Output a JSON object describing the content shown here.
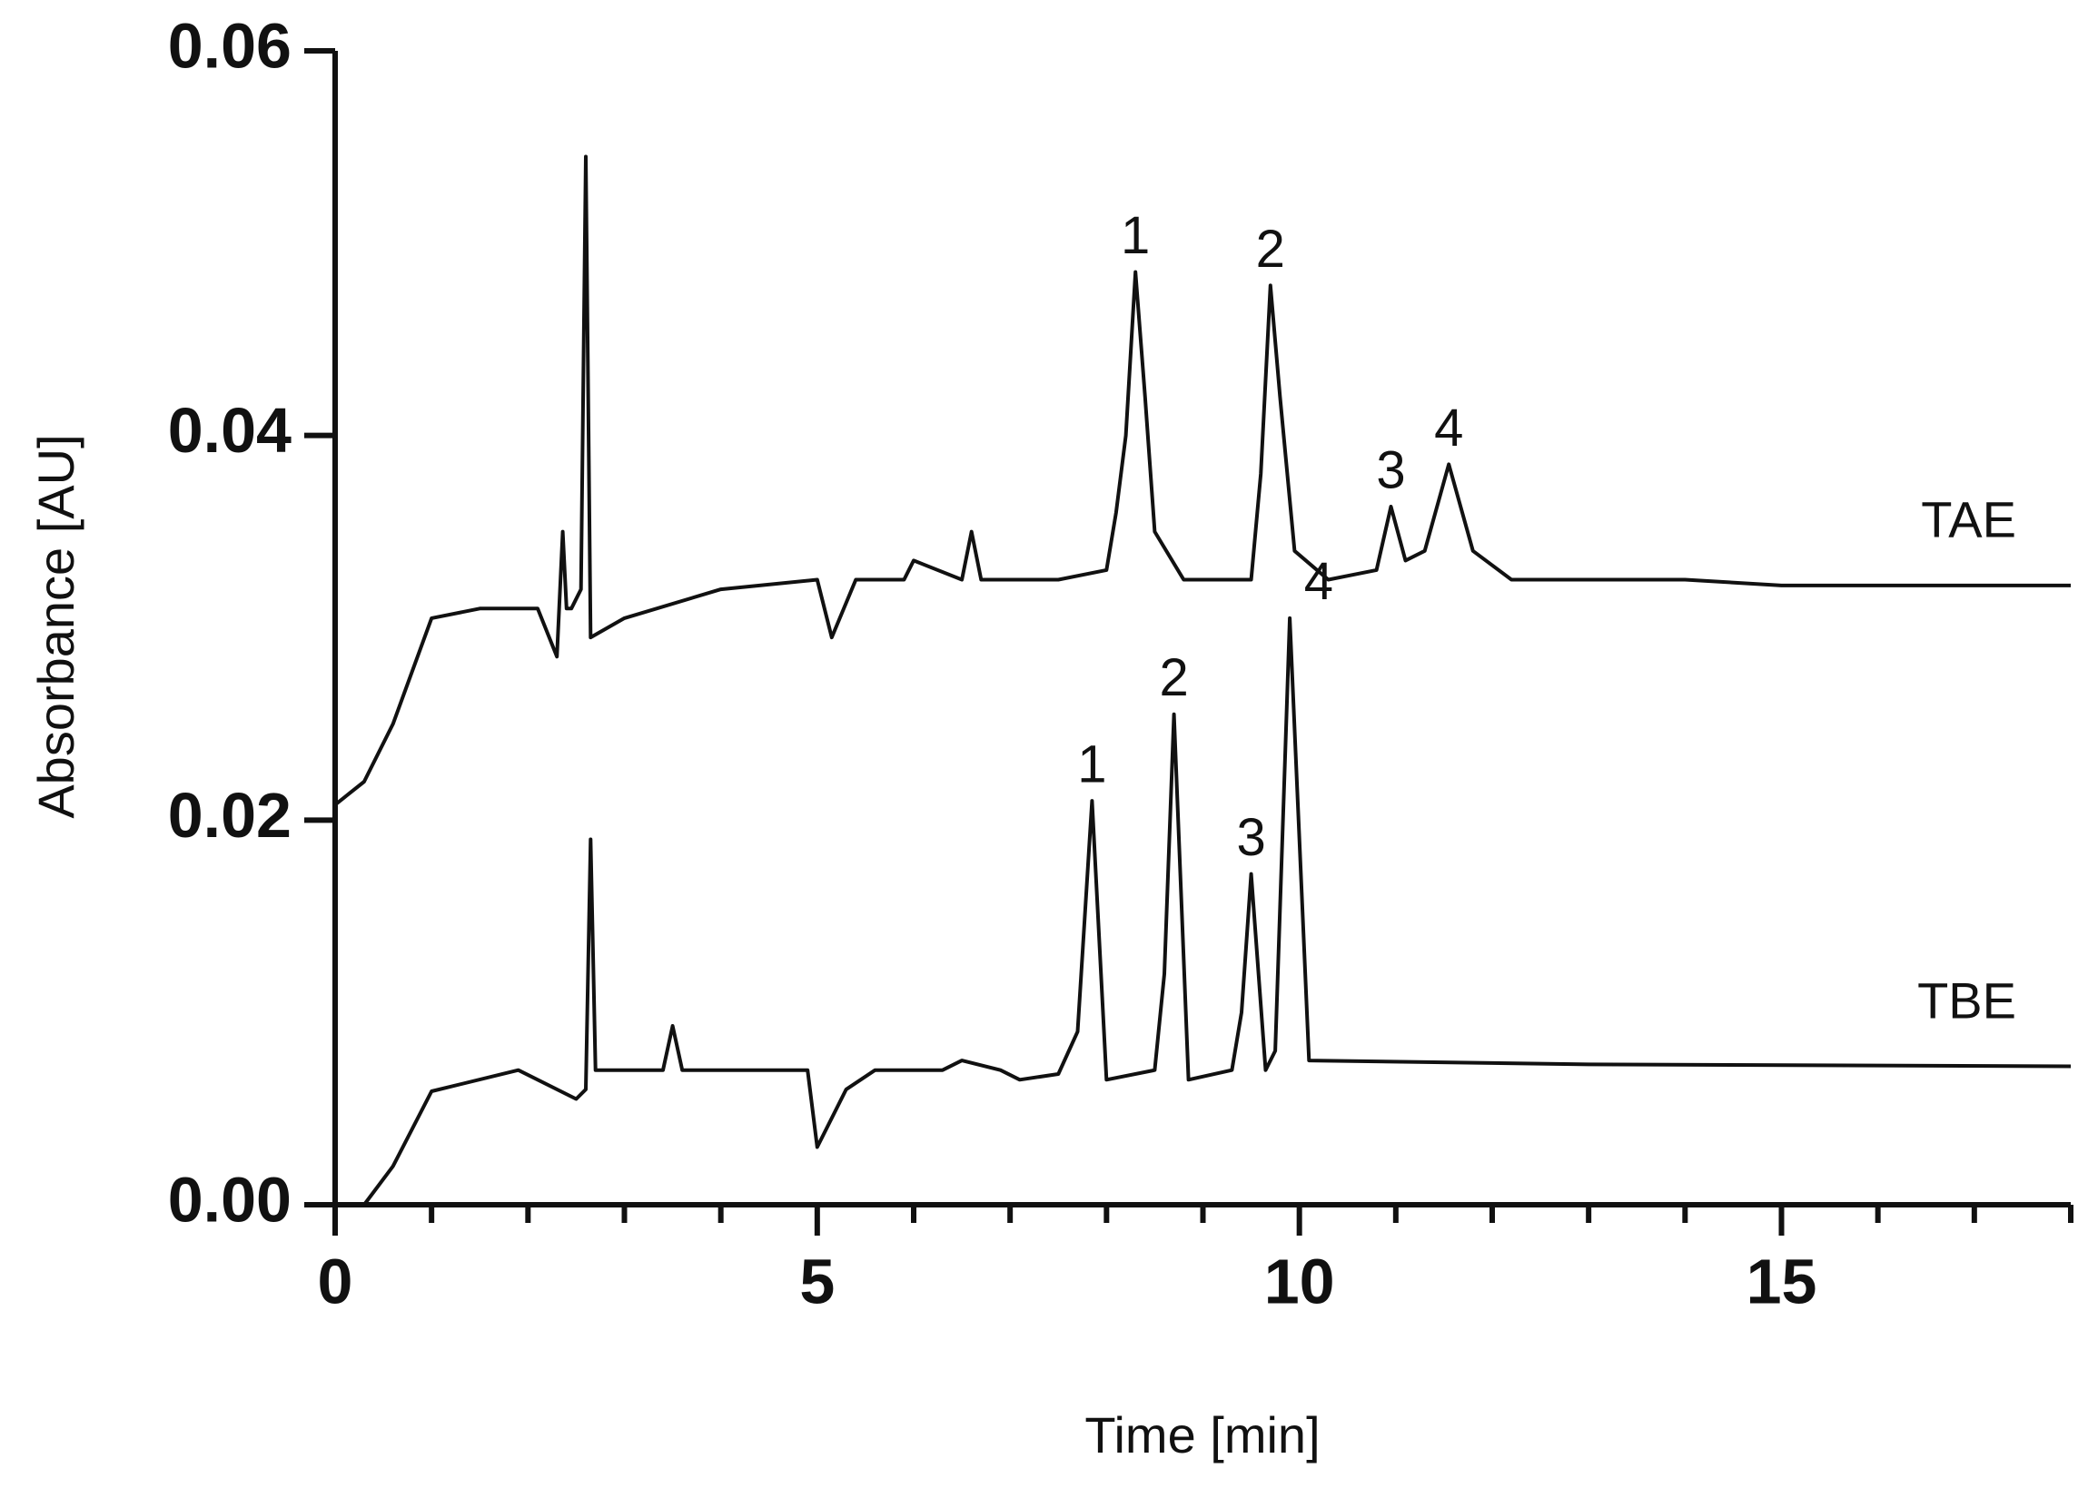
{
  "chart_data": {
    "type": "line",
    "xlabel": "Time [min]",
    "ylabel": "Absorbance [AU]",
    "xlim": [
      0,
      18
    ],
    "ylim": [
      0,
      0.06
    ],
    "xticks": [
      0,
      5,
      10,
      15
    ],
    "xminorticks": [
      1,
      2,
      3,
      4,
      6,
      7,
      8,
      9,
      11,
      12,
      13,
      14,
      16,
      17,
      18
    ],
    "yticks": [
      {
        "value": 0,
        "label": "0.00"
      },
      {
        "value": 0.02,
        "label": "0.02"
      },
      {
        "value": 0.04,
        "label": "0.04"
      },
      {
        "value": 0.06,
        "label": "0.06"
      }
    ],
    "series": [
      {
        "name": "TAE",
        "color": "#111111",
        "x": [
          0,
          0.3,
          0.6,
          1.0,
          1.5,
          2.1,
          2.3,
          2.36,
          2.4,
          2.45,
          2.55,
          2.6,
          2.65,
          3.0,
          4.0,
          5.0,
          5.15,
          5.4,
          5.9,
          6.0,
          6.5,
          6.6,
          6.7,
          7.5,
          8.0,
          8.1,
          8.2,
          8.3,
          8.4,
          8.5,
          8.8,
          9.5,
          9.6,
          9.7,
          9.8,
          9.95,
          10.3,
          10.8,
          10.95,
          11.1,
          11.3,
          11.55,
          11.8,
          12.2,
          14.0,
          15.0,
          18.0
        ],
        "values": [
          0.0208,
          0.022,
          0.025,
          0.0305,
          0.031,
          0.031,
          0.0285,
          0.035,
          0.031,
          0.031,
          0.032,
          0.0545,
          0.0295,
          0.0305,
          0.032,
          0.0325,
          0.0295,
          0.0325,
          0.0325,
          0.0335,
          0.0325,
          0.035,
          0.0325,
          0.0325,
          0.033,
          0.036,
          0.04,
          0.0485,
          0.042,
          0.035,
          0.0325,
          0.0325,
          0.038,
          0.0478,
          0.042,
          0.034,
          0.0325,
          0.033,
          0.0363,
          0.0335,
          0.034,
          0.0385,
          0.034,
          0.0325,
          0.0325,
          0.0322,
          0.0322
        ]
      },
      {
        "name": "TBE",
        "color": "#111111",
        "x": [
          0,
          0.3,
          0.6,
          1.0,
          1.9,
          2.5,
          2.6,
          2.65,
          2.7,
          3.4,
          3.5,
          3.6,
          4.9,
          5.0,
          5.3,
          5.6,
          6.3,
          6.5,
          6.9,
          7.1,
          7.5,
          7.7,
          7.85,
          8.0,
          8.5,
          8.6,
          8.7,
          8.85,
          9.3,
          9.4,
          9.5,
          9.65,
          9.75,
          9.9,
          10.1,
          13.0,
          18.0
        ],
        "values": [
          null,
          0,
          0.002,
          0.0059,
          0.007,
          0.0055,
          0.006,
          0.019,
          0.007,
          0.007,
          0.0093,
          0.007,
          0.007,
          0.003,
          0.006,
          0.007,
          0.007,
          0.0075,
          0.007,
          0.0065,
          0.0068,
          0.009,
          0.021,
          0.0065,
          0.007,
          0.012,
          0.0255,
          0.0065,
          0.007,
          0.01,
          0.0172,
          0.007,
          0.008,
          0.0305,
          0.0075,
          0.0073,
          0.0072
        ]
      }
    ],
    "annotations": [
      {
        "text": "1",
        "x": 8.3,
        "y": 0.0485
      },
      {
        "text": "2",
        "x": 9.7,
        "y": 0.0478
      },
      {
        "text": "3",
        "x": 10.95,
        "y": 0.0363
      },
      {
        "text": "4",
        "x": 11.55,
        "y": 0.0385
      },
      {
        "text": "1",
        "x": 7.85,
        "y": 0.021
      },
      {
        "text": "2",
        "x": 8.7,
        "y": 0.0255
      },
      {
        "text": "3",
        "x": 9.5,
        "y": 0.0172
      },
      {
        "text": "4",
        "x": 10.2,
        "y": 0.0305
      }
    ]
  }
}
